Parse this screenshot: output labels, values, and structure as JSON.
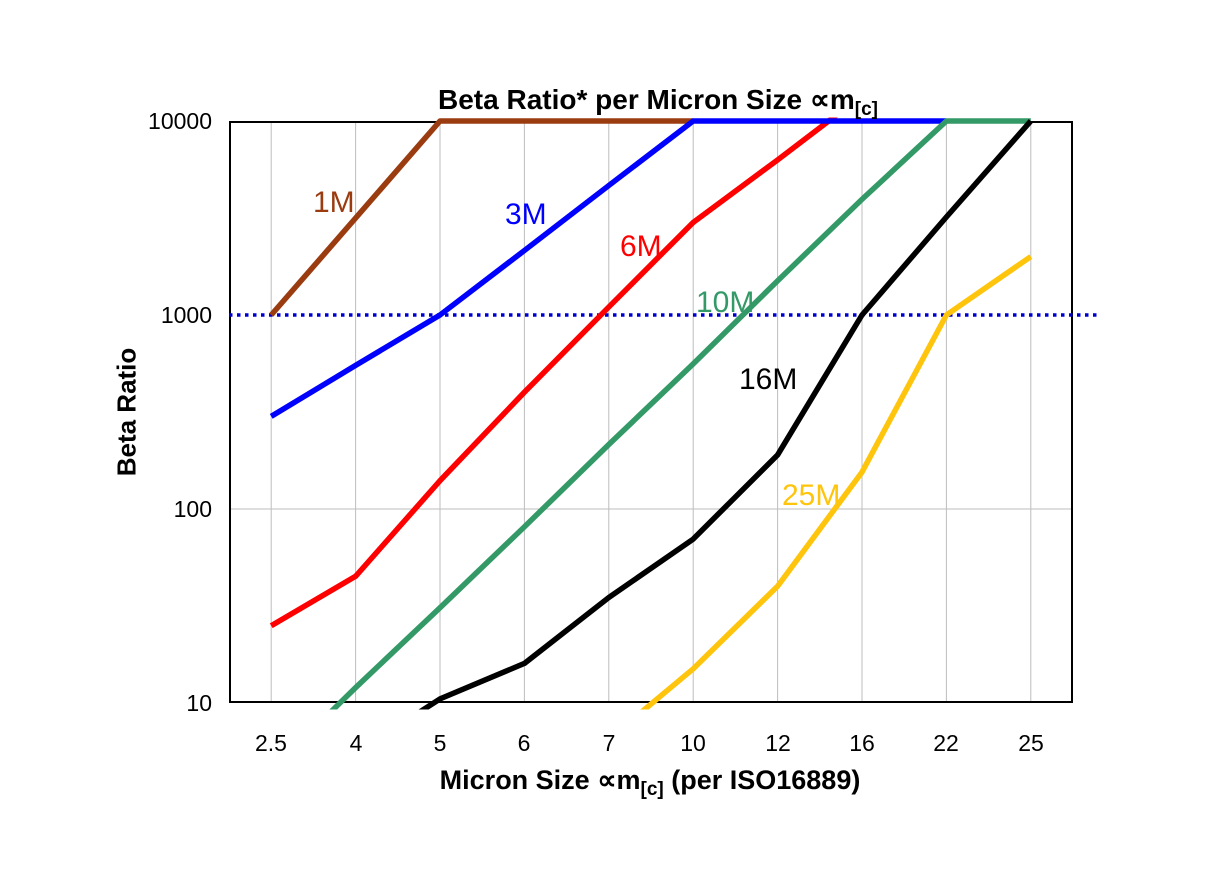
{
  "title": {
    "text": "Beta Ratio* per Micron Size ∝m",
    "sub": "[c]"
  },
  "y_axis": {
    "label": "Beta Ratio",
    "tick_labels": [
      "10000",
      "1000",
      "100",
      "10"
    ]
  },
  "x_axis": {
    "label_part1": "Micron Size ∝m",
    "label_sub": "[c]",
    "label_part2": " (per ISO16889)",
    "tick_labels": [
      "2.5",
      "4",
      "5",
      "6",
      "7",
      "10",
      "12",
      "16",
      "22",
      "25"
    ]
  },
  "chart_data": {
    "type": "line",
    "title": "Beta Ratio* per Micron Size ∝m[c]",
    "xlabel": "Micron Size ∝m[c] (per ISO16889)",
    "ylabel": "Beta Ratio",
    "x_scale": "categorical",
    "y_scale": "log",
    "ylim": [
      10,
      10000
    ],
    "y_ticks": [
      10,
      100,
      1000,
      10000
    ],
    "h_gridlines": [
      100
    ],
    "grid": "vertical gridline at every category; horizontal gridline at 100",
    "legend_position": "inline labels next to each curve",
    "categories": [
      2.5,
      4,
      5,
      6,
      7,
      10,
      12,
      16,
      22,
      25
    ],
    "reference_line": {
      "value": 1000,
      "color": "#0000CC",
      "style": "dotted"
    },
    "series": [
      {
        "name": "6M",
        "color": "#FF0000",
        "points": [
          [
            2.5,
            25
          ],
          [
            4,
            45
          ],
          [
            5,
            140
          ],
          [
            6,
            400
          ],
          [
            7,
            1100
          ],
          [
            10,
            3000
          ],
          [
            12,
            6300
          ],
          [
            16,
            13500
          ]
        ],
        "note": "clipped at y-axis max 10000 between 12 and 16"
      },
      {
        "name": "1M",
        "color": "#9A3B10",
        "points": [
          [
            2.5,
            1000
          ],
          [
            4,
            3160
          ],
          [
            5,
            10000
          ],
          [
            6,
            10000
          ],
          [
            7,
            10000
          ],
          [
            10,
            10000
          ]
        ]
      },
      {
        "name": "3M",
        "color": "#0000FF",
        "points": [
          [
            2.5,
            300
          ],
          [
            4,
            550
          ],
          [
            5,
            1000
          ],
          [
            6,
            2150
          ],
          [
            7,
            4650
          ],
          [
            10,
            10000
          ],
          [
            12,
            10000
          ],
          [
            16,
            10000
          ],
          [
            22,
            10000
          ]
        ]
      },
      {
        "name": "10M",
        "color": "#339966",
        "points": [
          [
            2.5,
            4.5
          ],
          [
            4,
            12
          ],
          [
            5,
            31
          ],
          [
            6,
            81
          ],
          [
            7,
            215
          ],
          [
            10,
            560
          ],
          [
            12,
            1500
          ],
          [
            16,
            3950
          ],
          [
            22,
            10000
          ],
          [
            25,
            10000
          ]
        ]
      },
      {
        "name": "16M",
        "color": "#000000",
        "points": [
          [
            4,
            5.5
          ],
          [
            5,
            10.5
          ],
          [
            6,
            16
          ],
          [
            7,
            35
          ],
          [
            10,
            70
          ],
          [
            12,
            190
          ],
          [
            16,
            1000
          ],
          [
            22,
            3200
          ],
          [
            25,
            10000
          ]
        ]
      },
      {
        "name": "25M",
        "color": "#FFC40C",
        "points": [
          [
            7,
            6.5
          ],
          [
            10,
            15
          ],
          [
            12,
            40
          ],
          [
            16,
            155
          ],
          [
            22,
            1000
          ],
          [
            25,
            2000
          ]
        ]
      }
    ]
  }
}
